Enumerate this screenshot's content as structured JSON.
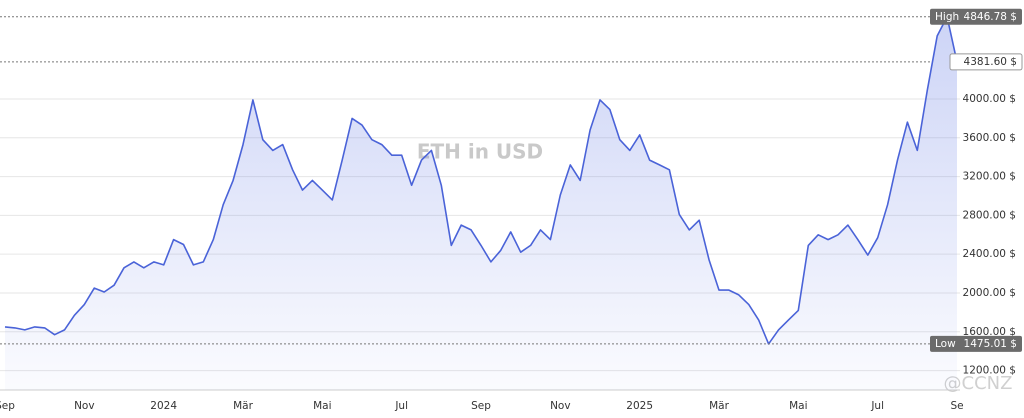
{
  "chart_data": {
    "type": "area",
    "title": "ETH in USD",
    "categories": [
      "Sep",
      null,
      null,
      null,
      null,
      null,
      null,
      null,
      "Nov",
      null,
      null,
      null,
      null,
      null,
      null,
      null,
      "2024",
      null,
      null,
      null,
      null,
      null,
      null,
      null,
      "Mär",
      null,
      null,
      null,
      null,
      null,
      null,
      null,
      "Mai",
      null,
      null,
      null,
      null,
      null,
      null,
      null,
      "Jul",
      null,
      null,
      null,
      null,
      null,
      null,
      null,
      "Sep",
      null,
      null,
      null,
      null,
      null,
      null,
      null,
      "Nov",
      null,
      null,
      null,
      null,
      null,
      null,
      null,
      "2025",
      null,
      null,
      null,
      null,
      null,
      null,
      null,
      "Mär",
      null,
      null,
      null,
      null,
      null,
      null,
      null,
      "Mai",
      null,
      null,
      null,
      null,
      null,
      null,
      null,
      "Jul",
      null,
      null,
      null,
      null,
      null,
      null,
      null,
      "Se"
    ],
    "values": [
      1650,
      1640,
      1620,
      1650,
      1640,
      1570,
      1620,
      1770,
      1880,
      2050,
      2010,
      2080,
      2260,
      2320,
      2260,
      2320,
      2290,
      2550,
      2500,
      2290,
      2320,
      2550,
      2910,
      3160,
      3530,
      3990,
      3580,
      3470,
      3530,
      3270,
      3060,
      3160,
      3060,
      2960,
      3370,
      3800,
      3730,
      3580,
      3530,
      3420,
      3420,
      3110,
      3370,
      3470,
      3110,
      2490,
      2700,
      2650,
      2490,
      2320,
      2440,
      2630,
      2420,
      2490,
      2650,
      2550,
      3010,
      3320,
      3160,
      3680,
      3990,
      3890,
      3580,
      3470,
      3630,
      3370,
      3320,
      3270,
      2810,
      2650,
      2750,
      2340,
      2030,
      2030,
      1980,
      1880,
      1720,
      1475.01,
      1620,
      1720,
      1820,
      2490,
      2600,
      2550,
      2600,
      2700,
      2550,
      2390,
      2570,
      2910,
      3370,
      3760,
      3470,
      4090,
      4650,
      4846.78,
      4381.6
    ],
    "color": "#4a63d8",
    "ylim": [
      1000,
      5020
    ],
    "yticks": [
      {
        "value": 1200,
        "label": "1200.00 $"
      },
      {
        "value": 1600,
        "label": "1600.00 $"
      },
      {
        "value": 2000,
        "label": "2000.00 $"
      },
      {
        "value": 2400,
        "label": "2400.00 $"
      },
      {
        "value": 2800,
        "label": "2800.00 $"
      },
      {
        "value": 3200,
        "label": "3200.00 $"
      },
      {
        "value": 3600,
        "label": "3600.00 $"
      },
      {
        "value": 4000,
        "label": "4000.00 $"
      }
    ],
    "grid": true,
    "high": {
      "label": "High",
      "value": 4846.78,
      "value_label": "4846.78 $"
    },
    "low": {
      "label": "Low",
      "value": 1475.01,
      "value_label": "1475.01 $"
    },
    "last": {
      "value": 4381.6,
      "value_label": "4381.60 $"
    },
    "watermark": "@CCNZ"
  }
}
